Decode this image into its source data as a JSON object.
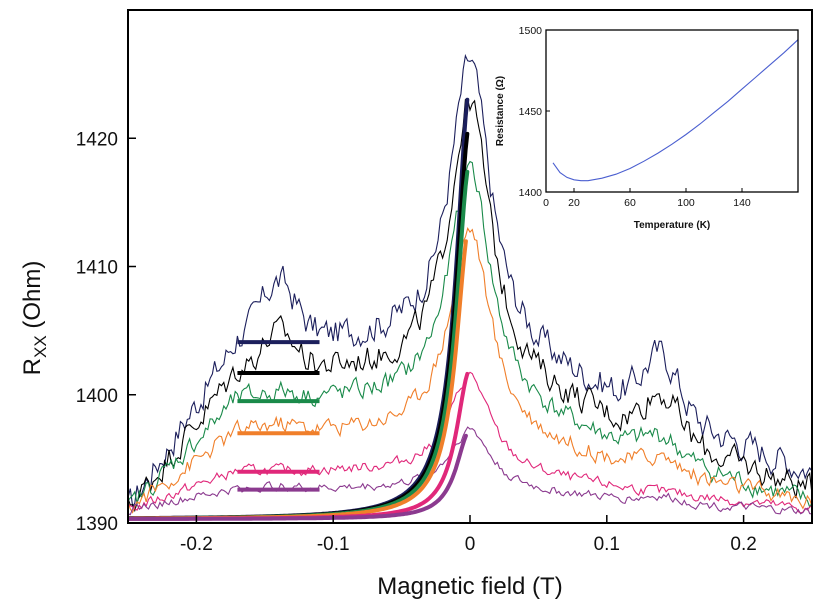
{
  "chart_data": [
    {
      "type": "line",
      "xlabel": "Magnetic field (T)",
      "ylabel": "R",
      "ylabel_sub": "XX",
      "ylabel_unit": " (Ohm)",
      "xlim": [
        -0.25,
        0.25
      ],
      "ylim": [
        1390,
        1430
      ],
      "xticks": [
        -0.2,
        -0.1,
        0,
        0.1,
        0.2
      ],
      "xtick_labels": [
        "-0.2",
        "-0.1",
        "0",
        "0.1",
        "0.2"
      ],
      "yticks": [
        1390,
        1400,
        1410,
        1420
      ],
      "ytick_labels": [
        "1390",
        "1400",
        "1410",
        "1420"
      ],
      "grid": false,
      "series": [
        {
          "color": "#1c1f5c",
          "level": 1404.1,
          "peak": 1426.0,
          "left_bump": 1408.5,
          "right_bump": 1408.5,
          "right_end": 1394.0,
          "amp": 0.9
        },
        {
          "color": "#000000",
          "level": 1401.7,
          "peak": 1423.0,
          "left_bump": 1404.5,
          "right_bump": 1405.0,
          "right_end": 1392.5,
          "amp": 0.8
        },
        {
          "color": "#1a8a4a",
          "level": 1399.5,
          "peak": 1418.0,
          "left_bump": 1400.0,
          "right_bump": 1401.0,
          "right_end": 1391.5,
          "amp": 0.6
        },
        {
          "color": "#f07f2a",
          "level": 1397.0,
          "peak": 1413.0,
          "left_bump": 1397.5,
          "right_bump": 1398.0,
          "right_end": 1391.5,
          "amp": 0.5
        },
        {
          "color": "#e0287a",
          "level": 1394.0,
          "peak": 1401.5,
          "left_bump": 1394.0,
          "right_bump": 1394.0,
          "right_end": 1391.0,
          "amp": 0.3
        },
        {
          "color": "#8b3a8f",
          "level": 1392.6,
          "peak": 1397.3,
          "left_bump": 1392.8,
          "right_bump": 1393.0,
          "right_end": 1390.8,
          "amp": 0.25
        }
      ],
      "fit_lines": [
        {
          "color": "#1c1f5c",
          "x_start": -0.25,
          "x_end": -0.002,
          "y_end": 1423.2
        },
        {
          "color": "#000000",
          "x_start": -0.25,
          "x_end": -0.002,
          "y_end": 1420.5
        },
        {
          "color": "#1a8a4a",
          "x_start": -0.25,
          "x_end": -0.002,
          "y_end": 1417.5
        },
        {
          "color": "#f07f2a",
          "x_start": -0.25,
          "x_end": -0.003,
          "y_end": 1412.0
        },
        {
          "color": "#e0287a",
          "x_start": -0.25,
          "x_end": -0.002,
          "y_end": 1401.5
        },
        {
          "color": "#8b3a8f",
          "x_start": -0.25,
          "x_end": -0.003,
          "y_end": 1396.6
        }
      ],
      "reference_levels": [
        {
          "color": "#1c1f5c",
          "y": 1404.1,
          "x_start": -0.17,
          "x_end": -0.11
        },
        {
          "color": "#000000",
          "y": 1401.7,
          "x_start": -0.17,
          "x_end": -0.11
        },
        {
          "color": "#1a8a4a",
          "y": 1399.5,
          "x_start": -0.17,
          "x_end": -0.11
        },
        {
          "color": "#f07f2a",
          "y": 1397.0,
          "x_start": -0.17,
          "x_end": -0.11
        },
        {
          "color": "#e0287a",
          "y": 1394.0,
          "x_start": -0.17,
          "x_end": -0.11
        },
        {
          "color": "#8b3a8f",
          "y": 1392.6,
          "x_start": -0.17,
          "x_end": -0.11
        }
      ]
    },
    {
      "type": "line",
      "inset": true,
      "xlabel": "Temperature (K)",
      "ylabel": "Resistance (Ω)",
      "xlim": [
        0,
        180
      ],
      "ylim": [
        1400,
        1500
      ],
      "xticks": [
        0,
        20,
        60,
        100,
        140
      ],
      "xtick_labels": [
        "0",
        "20",
        "60",
        "100",
        "140"
      ],
      "yticks": [
        1400,
        1450,
        1500
      ],
      "ytick_labels": [
        "1400",
        "1450",
        "1500"
      ],
      "series": [
        {
          "color": "#4b5fd0",
          "x": [
            5,
            10,
            15,
            20,
            25,
            30,
            40,
            50,
            60,
            70,
            80,
            90,
            100,
            110,
            120,
            130,
            140,
            150,
            160,
            170,
            180
          ],
          "y": [
            1418,
            1412,
            1409,
            1407.5,
            1407,
            1407,
            1408.5,
            1411,
            1414.5,
            1419,
            1424,
            1429.5,
            1435.5,
            1442,
            1449,
            1456,
            1463.5,
            1471,
            1478.5,
            1486,
            1494
          ]
        }
      ]
    }
  ]
}
